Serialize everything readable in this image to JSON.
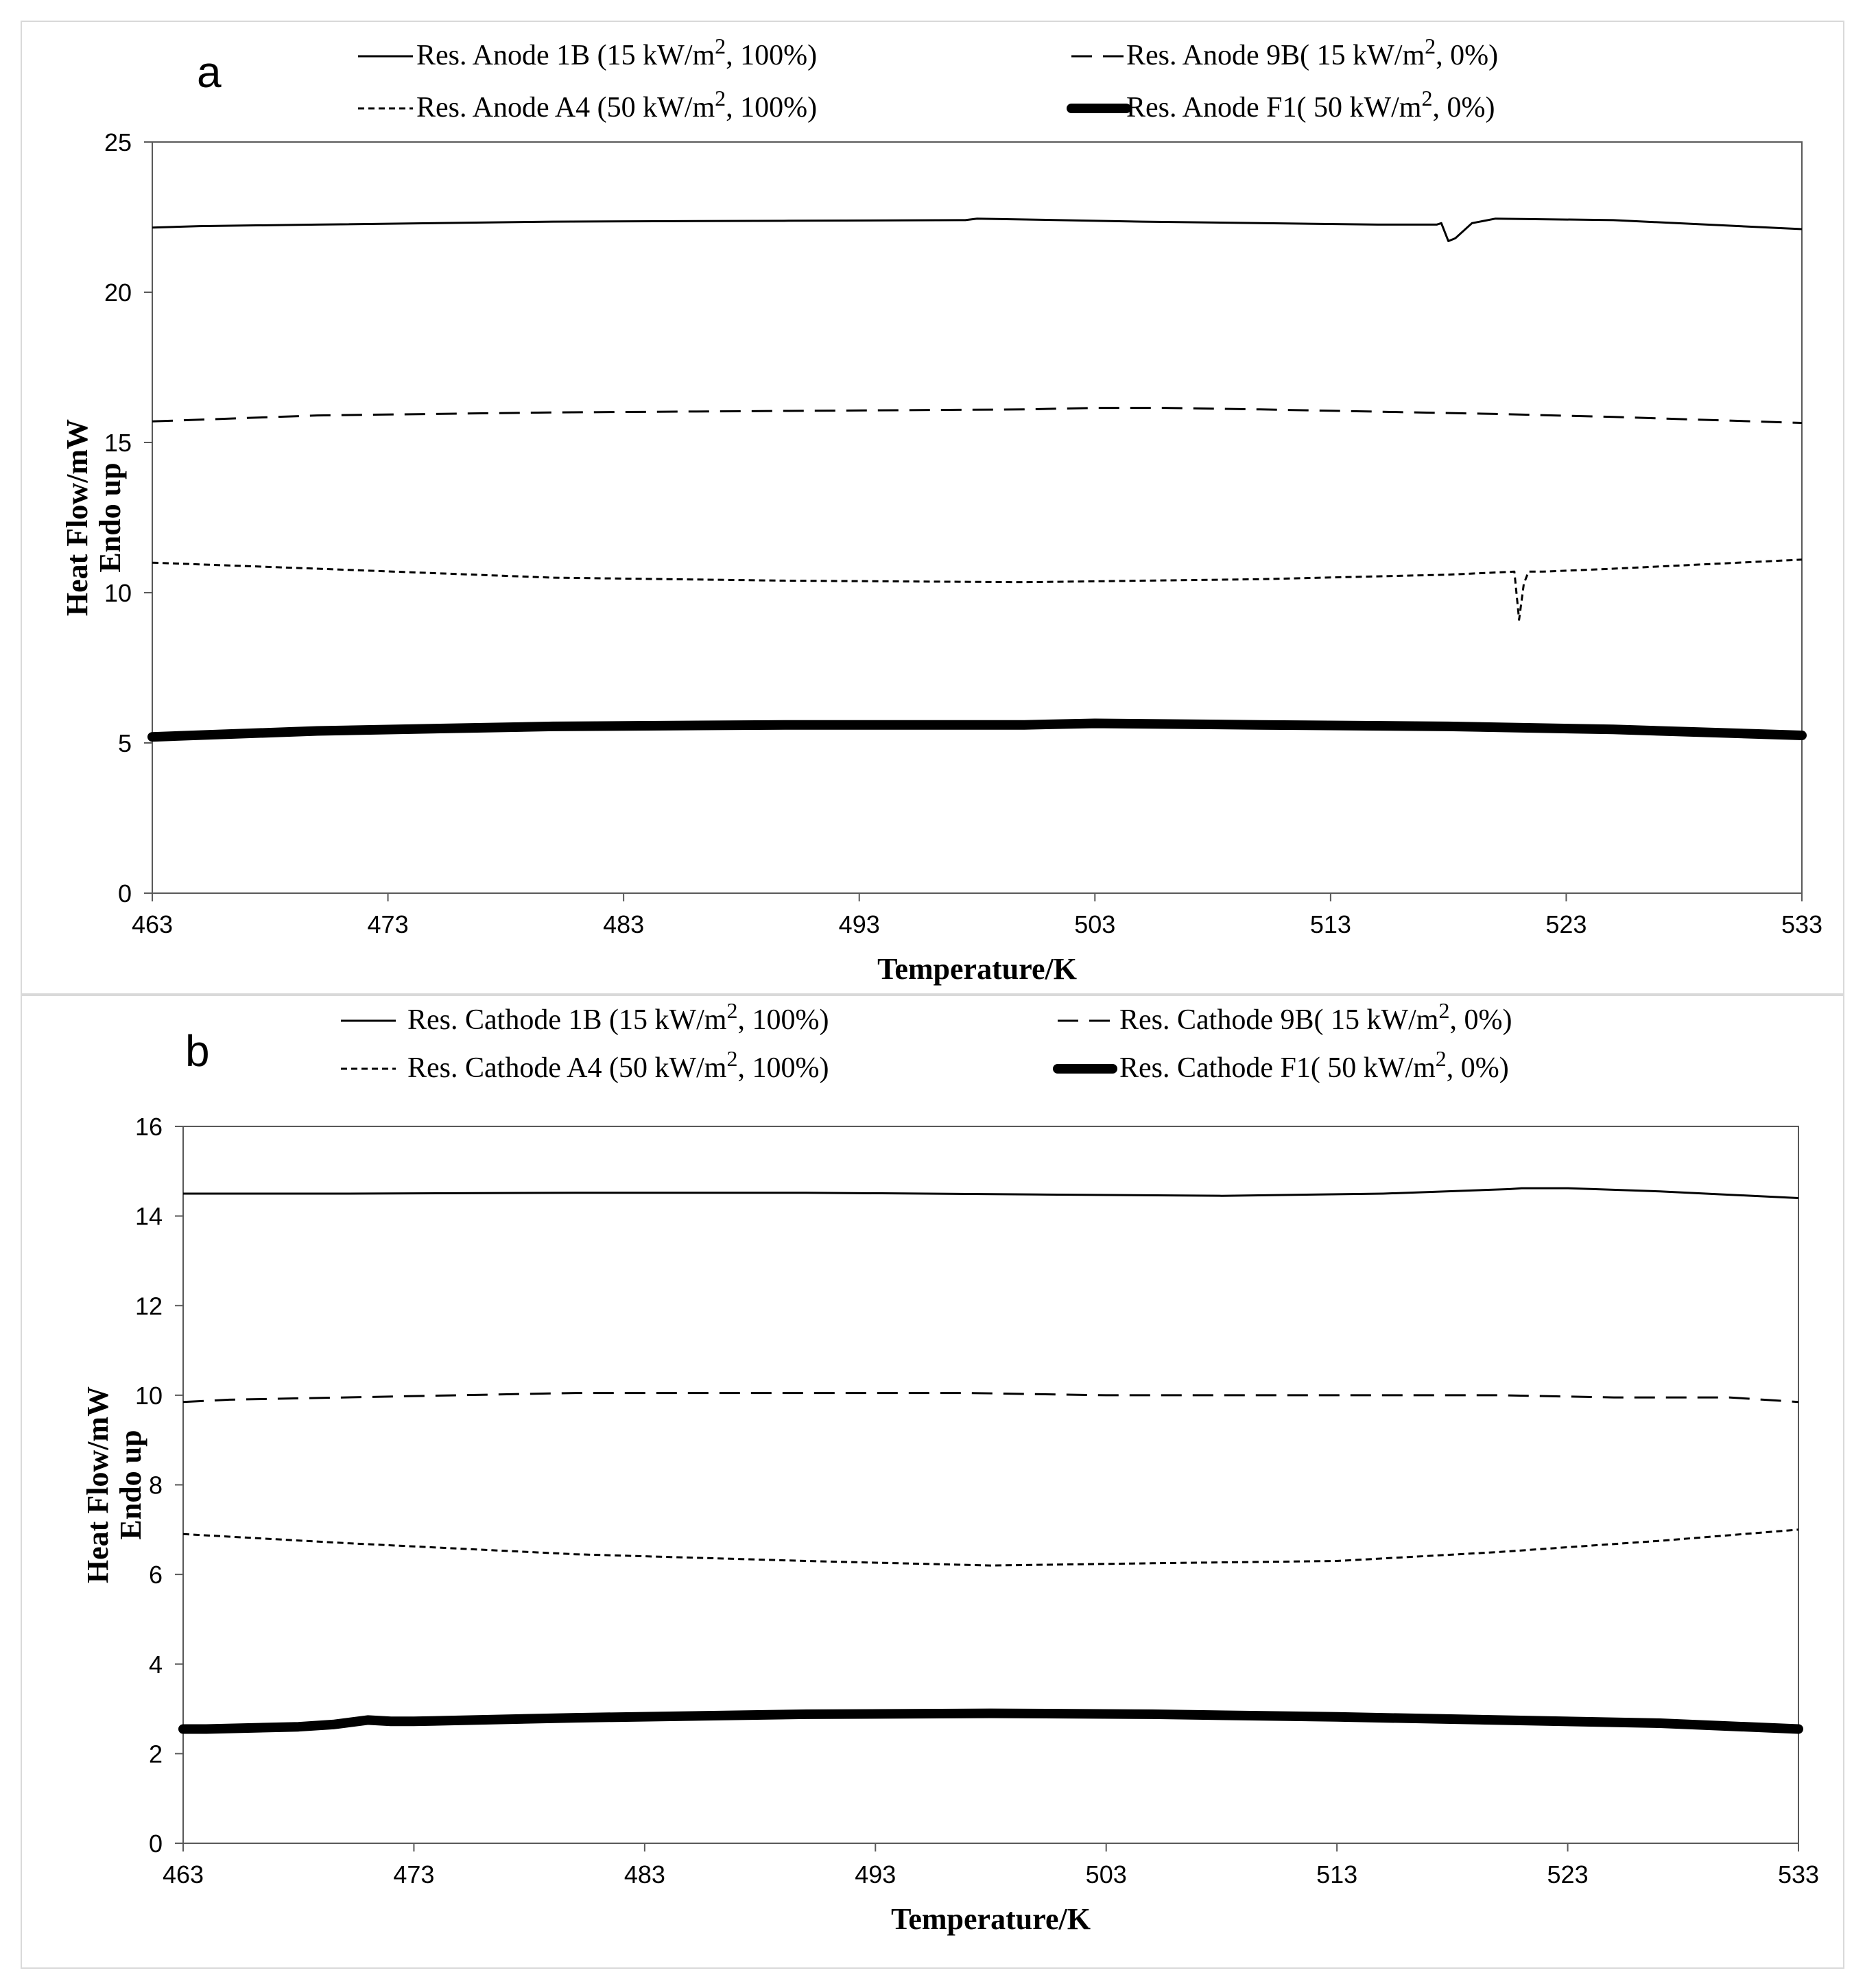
{
  "chart_data": [
    {
      "type": "line",
      "panel_label": "a",
      "xlabel": "Temperature/K",
      "ylabel": [
        "Heat Flow/mW",
        "Endo up"
      ],
      "xlim": [
        463,
        533
      ],
      "ylim": [
        0,
        25
      ],
      "xticks": [
        "463",
        "473",
        "483",
        "493",
        "503",
        "513",
        "523",
        "533"
      ],
      "yticks": [
        "0",
        "5",
        "10",
        "15",
        "20",
        "25"
      ],
      "legend_position": "top",
      "series": [
        {
          "name_main": "Res. Anode 1B (15 kW/m",
          "name_sup": "2",
          "name_tail": ", 100%)",
          "style": "solid",
          "x": [
            463,
            465,
            470,
            480,
            490,
            497.5,
            498,
            505,
            515,
            517.5,
            517.7,
            518,
            518.3,
            519,
            520,
            525,
            533
          ],
          "y": [
            22.15,
            22.2,
            22.25,
            22.35,
            22.38,
            22.4,
            22.45,
            22.35,
            22.25,
            22.25,
            22.3,
            21.7,
            21.8,
            22.3,
            22.45,
            22.4,
            22.1
          ]
        },
        {
          "name_main": "Res. Anode 9B( 15 kW/m",
          "name_sup": "2",
          "name_tail": ", 0%)",
          "style": "dash",
          "x": [
            463,
            470,
            480,
            490,
            500,
            503,
            506,
            510,
            520,
            525,
            533
          ],
          "y": [
            15.7,
            15.9,
            16.0,
            16.05,
            16.1,
            16.15,
            16.15,
            16.1,
            15.95,
            15.85,
            15.65
          ]
        },
        {
          "name_main": "Res. Anode A4 (50 kW/m",
          "name_sup": "2",
          "name_tail": ", 100%)",
          "style": "dot",
          "x": [
            463,
            470,
            480,
            490,
            500,
            510,
            518,
            520.8,
            521,
            521.2,
            521.4,
            522,
            525,
            533
          ],
          "y": [
            11.0,
            10.8,
            10.5,
            10.4,
            10.35,
            10.45,
            10.6,
            10.7,
            9.1,
            10.3,
            10.7,
            10.7,
            10.8,
            11.1
          ]
        },
        {
          "name_main": "Res. Anode F1( 50 kW/m",
          "name_sup": "2",
          "name_tail": ", 0%)",
          "style": "thick",
          "x": [
            463,
            470,
            480,
            490,
            500,
            503,
            510,
            518,
            525,
            533
          ],
          "y": [
            5.2,
            5.4,
            5.55,
            5.6,
            5.6,
            5.65,
            5.6,
            5.55,
            5.45,
            5.25
          ]
        }
      ]
    },
    {
      "type": "line",
      "panel_label": "b",
      "xlabel": "Temperature/K",
      "ylabel": [
        "Heat Flow/mW",
        "Endo up"
      ],
      "xlim": [
        463,
        533
      ],
      "ylim": [
        0,
        16
      ],
      "xticks": [
        "463",
        "473",
        "483",
        "493",
        "503",
        "513",
        "523",
        "533"
      ],
      "yticks": [
        "0",
        "2",
        "4",
        "6",
        "8",
        "10",
        "12",
        "14",
        "16"
      ],
      "legend_position": "top",
      "series": [
        {
          "name_main": "Res. Cathode 1B (15 kW/m",
          "name_sup": "2",
          "name_tail": ", 100%)",
          "style": "solid",
          "x": [
            463,
            470,
            480,
            490,
            500,
            508,
            515,
            520.5,
            521,
            523,
            527,
            533
          ],
          "y": [
            14.5,
            14.5,
            14.52,
            14.52,
            14.48,
            14.45,
            14.5,
            14.6,
            14.62,
            14.62,
            14.55,
            14.4
          ]
        },
        {
          "name_main": "Res. Cathode 9B( 15 kW/m",
          "name_sup": "2",
          "name_tail": ", 0%)",
          "style": "dash",
          "x": [
            463,
            465,
            470,
            480,
            490,
            497,
            503,
            510,
            515,
            520,
            525,
            530,
            533
          ],
          "y": [
            9.85,
            9.9,
            9.95,
            10.05,
            10.05,
            10.05,
            10.0,
            10.0,
            10.0,
            10.0,
            9.95,
            9.95,
            9.85
          ]
        },
        {
          "name_main": "Res. Cathode A4 (50 kW/m",
          "name_sup": "2",
          "name_tail": ", 100%)",
          "style": "dot",
          "x": [
            463,
            470,
            480,
            490,
            498,
            505,
            513,
            520,
            527,
            533
          ],
          "y": [
            6.9,
            6.7,
            6.45,
            6.3,
            6.2,
            6.25,
            6.3,
            6.5,
            6.75,
            7.0
          ]
        },
        {
          "name_main": "Res. Cathode F1( 50 kW/m",
          "name_sup": "2",
          "name_tail": ", 0%)",
          "style": "thick",
          "x": [
            463,
            464,
            468,
            469.5,
            471,
            472,
            473,
            480,
            490,
            498,
            505,
            513,
            520,
            527,
            533
          ],
          "y": [
            2.55,
            2.55,
            2.6,
            2.65,
            2.75,
            2.72,
            2.72,
            2.8,
            2.88,
            2.9,
            2.88,
            2.82,
            2.75,
            2.68,
            2.55
          ]
        }
      ]
    }
  ]
}
